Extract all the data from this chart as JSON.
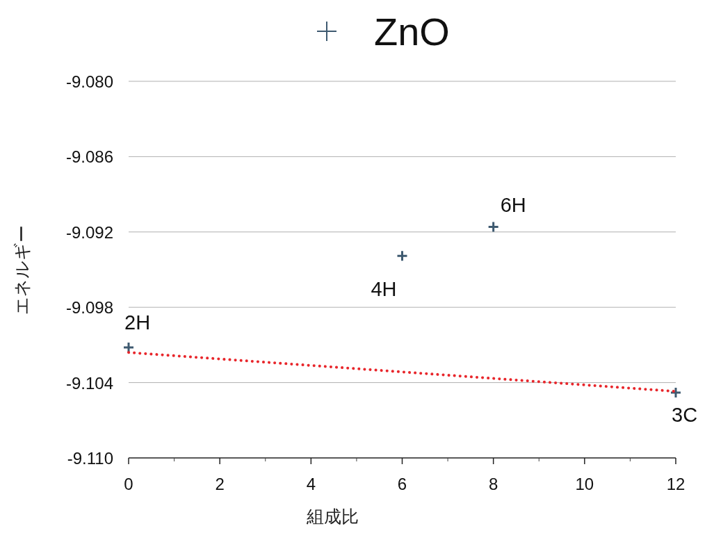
{
  "chart_data": {
    "type": "scatter",
    "xlabel": "組成比",
    "ylabel": "エネルギー",
    "xlim": [
      0,
      12
    ],
    "xticks": [
      0,
      2,
      4,
      6,
      8,
      10,
      12
    ],
    "ylim": [
      -9.11,
      -9.08
    ],
    "yticks": [
      {
        "value": -9.11,
        "label": "-9.110"
      },
      {
        "value": -9.104,
        "label": "-9.104"
      },
      {
        "value": -9.098,
        "label": "-9.098"
      },
      {
        "value": -9.092,
        "label": "-9.092"
      },
      {
        "value": -9.086,
        "label": "-9.086"
      },
      {
        "value": -9.08,
        "label": "-9.080"
      }
    ],
    "grid": "y",
    "legend": "top",
    "marker": "cross",
    "series": [
      {
        "name": "ZnO",
        "color": "#3e5a70",
        "x": [
          0,
          6,
          8,
          12
        ],
        "values": [
          -9.1012,
          -9.0939,
          -9.0916,
          -9.1048
        ]
      },
      {
        "type": "line",
        "color": "#e8262b",
        "line_style": "dotted",
        "marker": "none",
        "x": [
          0,
          12
        ],
        "values": [
          -9.1016,
          -9.1047
        ]
      }
    ],
    "annotations": [
      {
        "text": "2H",
        "x": 0,
        "y": -9.1012
      },
      {
        "text": "4H",
        "x": 6,
        "y": -9.0939
      },
      {
        "text": "6H",
        "x": 8,
        "y": -9.0916
      },
      {
        "text": "3C",
        "x": 12,
        "y": -9.1048
      }
    ]
  }
}
